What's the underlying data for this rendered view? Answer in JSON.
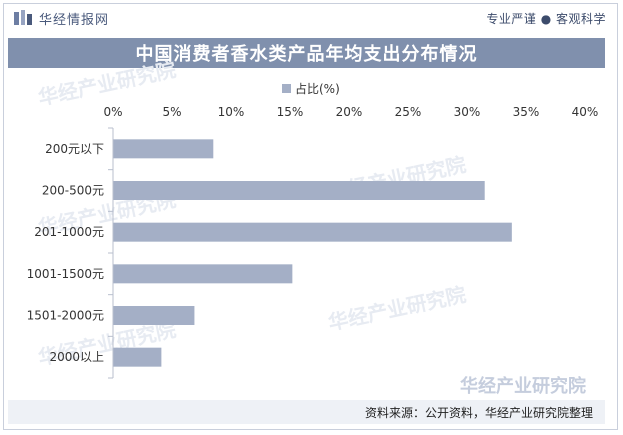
{
  "header": {
    "brand": "华经情报网",
    "slogan": "专业严谨 ● 客观科学"
  },
  "watermark": "华经产业研究院",
  "footer": {
    "source": "资料来源：公开资料，华经产业研究院整理"
  },
  "colors": {
    "bar": "#a4afc6",
    "title_bg": "#8090ad",
    "axis": "#b8bfce"
  },
  "chart_data": {
    "type": "bar",
    "orientation": "horizontal",
    "title": "中国消费者香水类产品年均支出分布情况",
    "legend_position": "top",
    "categories": [
      "200元以下",
      "200-500元",
      "201-1000元",
      "1001-1500元",
      "1501-2000元",
      "2000以上"
    ],
    "series": [
      {
        "name": "占比(%)",
        "values": [
          8.5,
          31.5,
          33.8,
          15.2,
          6.9,
          4.1
        ]
      }
    ],
    "x_ticks": [
      "0%",
      "5%",
      "10%",
      "15%",
      "20%",
      "25%",
      "30%",
      "35%",
      "40%"
    ],
    "xlim": [
      0,
      40
    ],
    "grid": false
  }
}
